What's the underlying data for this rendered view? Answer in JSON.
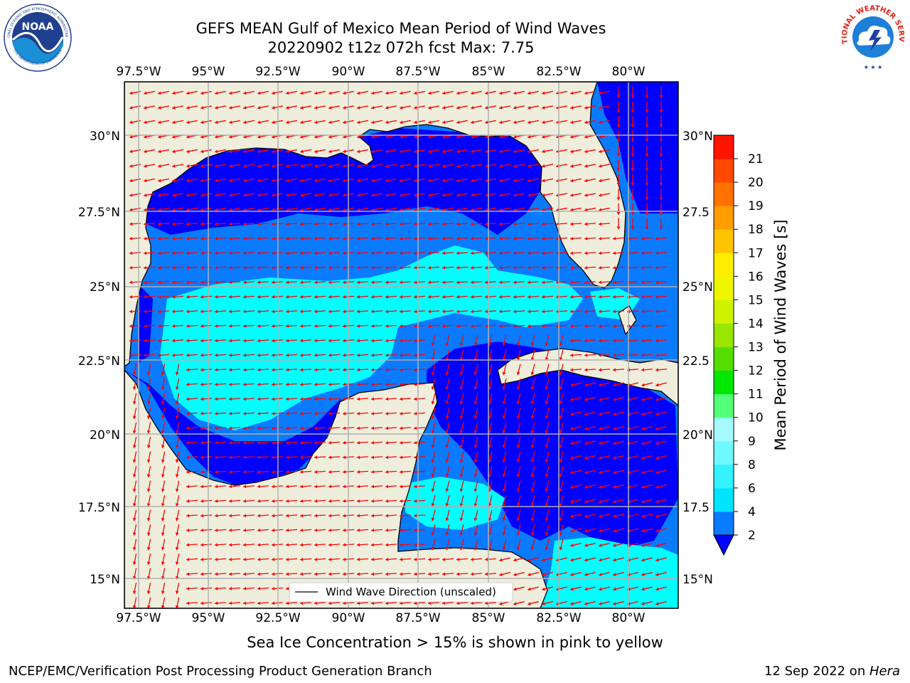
{
  "header": {
    "title_line1": "GEFS MEAN Gulf of Mexico Mean Period of Wind Waves",
    "title_line2": "20220902 t12z 072h fcst   Max: 7.75"
  },
  "logos": {
    "noaa_text": "NOAA",
    "noaa_ring": "NATIONAL OCEANIC AND ATMOSPHERIC ADMINISTRATION",
    "noaa_ring_bottom": "U.S. DEPARTMENT OF COMMERCE",
    "nws_ring": "NATIONAL WEATHER SERVICE"
  },
  "map": {
    "lon_labels": [
      "97.5°W",
      "95°W",
      "92.5°W",
      "90°W",
      "87.5°W",
      "85°W",
      "82.5°W",
      "80°W"
    ],
    "lat_labels": [
      "30°N",
      "27.5°N",
      "25°N",
      "22.5°N",
      "20°N",
      "17.5°N",
      "15°N"
    ],
    "right_lat_labels": [
      "30°N",
      "27.5",
      "25°N",
      "22.5",
      "20°N",
      "17.5",
      "15°N"
    ],
    "legend_label": "Wind Wave Direction (unscaled)",
    "land_color": "#efeedc",
    "arrow_color": "#ff0000"
  },
  "colorbar": {
    "label": "Mean Period of Wind Waves [s]",
    "ticks": [
      "2",
      "4",
      "6",
      "8",
      "9",
      "10",
      "11",
      "12",
      "13",
      "14",
      "15",
      "16",
      "17",
      "18",
      "19",
      "20",
      "21"
    ],
    "colors": [
      "#0a7bff",
      "#00e5ff",
      "#35f2ff",
      "#6ff8ff",
      "#a5fbff",
      "#56ff7a",
      "#00e800",
      "#55dd00",
      "#99e600",
      "#cff200",
      "#eef700",
      "#ffee00",
      "#ffc400",
      "#ff9c00",
      "#ff7200",
      "#ff4800",
      "#ff1400"
    ],
    "under_color": "#0000ff"
  },
  "caption": "Sea Ice Concentration > 15% is shown in pink to yellow",
  "footer": {
    "left": "NCEP/EMC/Verification Post Processing Product Generation Branch",
    "right_date": "12 Sep 2022 on ",
    "right_machine": "Hera"
  }
}
